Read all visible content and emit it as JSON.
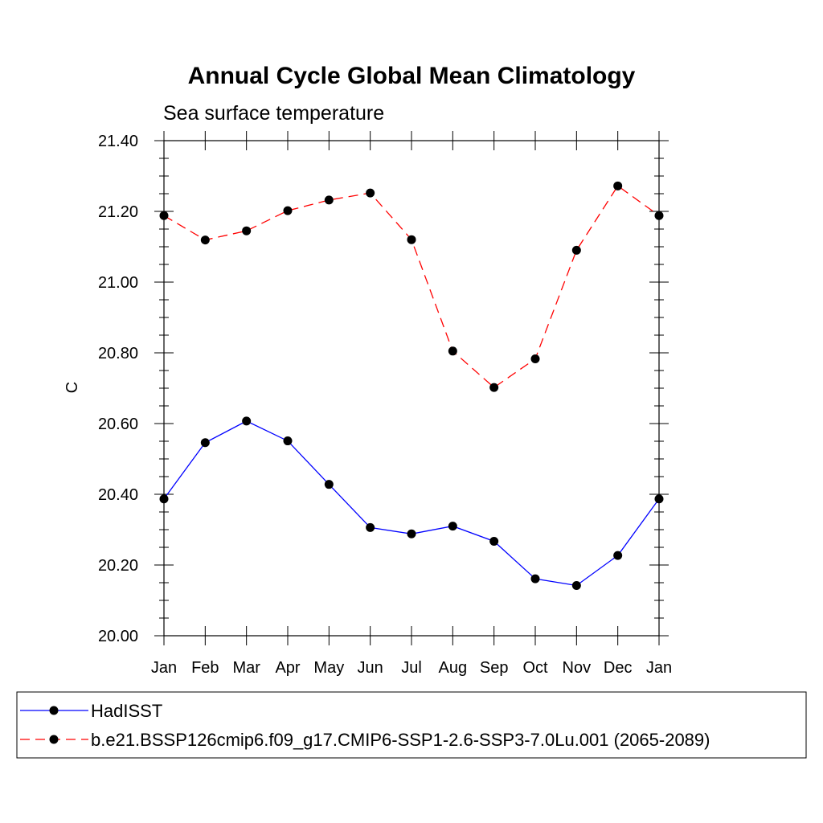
{
  "chart_data": {
    "type": "line",
    "title": "Annual Cycle Global Mean Climatology",
    "subtitle": "Sea surface temperature",
    "xlabel": "",
    "ylabel": "C",
    "categories": [
      "Jan",
      "Feb",
      "Mar",
      "Apr",
      "May",
      "Jun",
      "Jul",
      "Aug",
      "Sep",
      "Oct",
      "Nov",
      "Dec",
      "Jan"
    ],
    "ylim": [
      20.0,
      21.4
    ],
    "yticks": [
      "20.00",
      "20.20",
      "20.40",
      "20.60",
      "20.80",
      "21.00",
      "21.20",
      "21.40"
    ],
    "grid": false,
    "legend_position": "bottom",
    "series": [
      {
        "name": "HadISST",
        "color": "#0000ff",
        "line_style": "solid",
        "marker": "filled-circle",
        "values": [
          20.387,
          20.546,
          20.607,
          20.551,
          20.428,
          20.306,
          20.288,
          20.31,
          20.267,
          20.161,
          20.142,
          20.227,
          20.387
        ]
      },
      {
        "name": "b.e21.BSSP126cmip6.f09_g17.CMIP6-SSP1-2.6-SSP3-7.0Lu.001 (2065-2089)",
        "color": "#ff0000",
        "line_style": "dashed",
        "marker": "filled-circle",
        "values": [
          21.188,
          21.119,
          21.145,
          21.202,
          21.232,
          21.252,
          21.12,
          20.805,
          20.702,
          20.783,
          21.09,
          21.272,
          21.188
        ]
      }
    ]
  }
}
